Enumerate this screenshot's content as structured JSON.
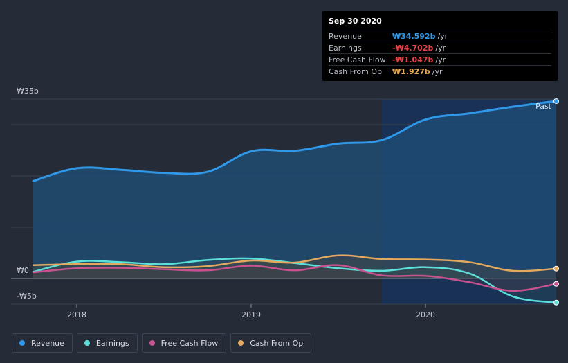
{
  "tooltip": {
    "date": "Sep 30 2020",
    "rows": [
      {
        "name": "Revenue",
        "value": "₩34.592b",
        "unit": "/yr",
        "color": "#2f98e8"
      },
      {
        "name": "Earnings",
        "value": "-₩4.702b",
        "unit": "/yr",
        "color": "#e8424a"
      },
      {
        "name": "Free Cash Flow",
        "value": "-₩1.047b",
        "unit": "/yr",
        "color": "#e8424a"
      },
      {
        "name": "Cash From Op",
        "value": "₩1.927b",
        "unit": "/yr",
        "color": "#e9a94e"
      }
    ]
  },
  "legend": [
    {
      "label": "Revenue",
      "color": "#2f98e8"
    },
    {
      "label": "Earnings",
      "color": "#5de0d9"
    },
    {
      "label": "Free Cash Flow",
      "color": "#c8528f"
    },
    {
      "label": "Cash From Op",
      "color": "#e3a95f"
    }
  ],
  "chart_data": {
    "type": "line",
    "ylabels": [
      "₩35b",
      "₩0",
      "-₩5b"
    ],
    "xticks": [
      {
        "label": "2018",
        "x": 2018.0
      },
      {
        "label": "2019",
        "x": 2019.0
      },
      {
        "label": "2020",
        "x": 2020.0
      }
    ],
    "past_label": "Past",
    "ylim": [
      -5,
      35
    ],
    "xlim": [
      2017.75,
      2020.75
    ],
    "past_region_start": 2019.75,
    "series": [
      {
        "name": "Revenue",
        "color": "#2f98e8",
        "x": [
          2017.75,
          2018.0,
          2018.25,
          2018.5,
          2018.75,
          2019.0,
          2019.25,
          2019.5,
          2019.75,
          2020.0,
          2020.25,
          2020.5,
          2020.75
        ],
        "y": [
          19.0,
          21.5,
          21.2,
          20.6,
          20.8,
          24.8,
          24.9,
          26.3,
          27.0,
          31.0,
          32.2,
          33.5,
          34.6
        ]
      },
      {
        "name": "Earnings",
        "color": "#5de0d9",
        "x": [
          2017.75,
          2018.0,
          2018.25,
          2018.5,
          2018.75,
          2019.0,
          2019.25,
          2019.5,
          2019.75,
          2020.0,
          2020.25,
          2020.5,
          2020.75
        ],
        "y": [
          1.3,
          3.3,
          3.2,
          2.8,
          3.6,
          3.9,
          3.0,
          2.0,
          1.5,
          2.2,
          1.0,
          -3.5,
          -4.7
        ]
      },
      {
        "name": "Free Cash Flow",
        "color": "#c8528f",
        "x": [
          2017.75,
          2018.0,
          2018.25,
          2018.5,
          2018.75,
          2019.0,
          2019.25,
          2019.5,
          2019.75,
          2020.0,
          2020.25,
          2020.5,
          2020.75
        ],
        "y": [
          1.2,
          2.0,
          2.1,
          1.8,
          1.6,
          2.5,
          1.6,
          2.6,
          0.6,
          0.5,
          -0.7,
          -2.4,
          -1.05
        ]
      },
      {
        "name": "Cash From Op",
        "color": "#e3a95f",
        "x": [
          2017.75,
          2018.0,
          2018.25,
          2018.5,
          2018.75,
          2019.0,
          2019.25,
          2019.5,
          2019.75,
          2020.0,
          2020.25,
          2020.5,
          2020.75
        ],
        "y": [
          2.6,
          2.8,
          2.8,
          2.2,
          2.4,
          3.5,
          3.1,
          4.5,
          3.8,
          3.7,
          3.2,
          1.5,
          1.93
        ]
      }
    ]
  }
}
